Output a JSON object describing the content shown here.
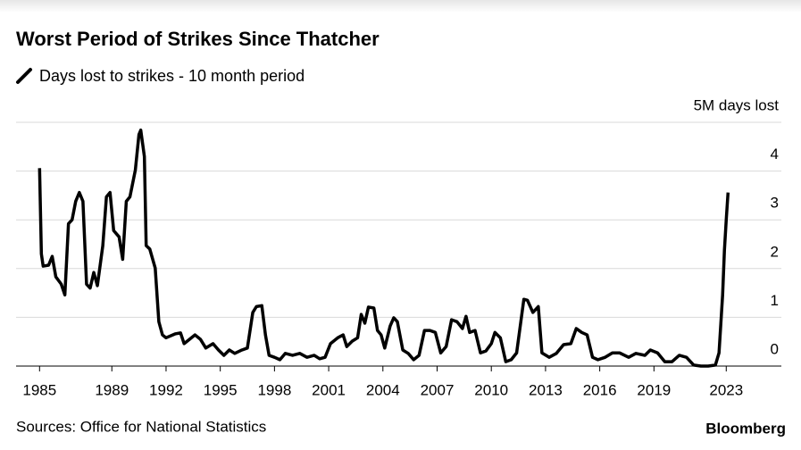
{
  "chart_data": {
    "type": "line",
    "title": "Worst Period of Strikes Since Thatcher",
    "source": "Sources: Office for National Statistics",
    "brand": "Bloomberg",
    "x": [
      1985.0,
      1985.1,
      1985.2,
      1985.5,
      1985.7,
      1985.9,
      1986.2,
      1986.4,
      1986.6,
      1986.8,
      1987.0,
      1987.2,
      1987.4,
      1987.6,
      1987.8,
      1988.0,
      1988.2,
      1988.5,
      1988.7,
      1988.9,
      1989.1,
      1989.4,
      1989.6,
      1989.8,
      1990.0,
      1990.3,
      1990.5,
      1990.6,
      1990.8,
      1990.9,
      1991.1,
      1991.4,
      1991.6,
      1991.8,
      1992.0,
      1992.5,
      1992.8,
      1993.0,
      1993.3,
      1993.6,
      1993.9,
      1994.2,
      1994.6,
      1994.9,
      1995.2,
      1995.5,
      1995.8,
      1996.2,
      1996.5,
      1996.8,
      1997.0,
      1997.3,
      1997.5,
      1997.7,
      1998.0,
      1998.3,
      1998.6,
      1999.0,
      1999.4,
      1999.8,
      2000.2,
      2000.5,
      2000.8,
      2001.1,
      2001.5,
      2001.8,
      2002.0,
      2002.3,
      2002.6,
      2002.8,
      2003.0,
      2003.2,
      2003.5,
      2003.7,
      2003.9,
      2004.1,
      2004.4,
      2004.6,
      2004.8,
      2005.1,
      2005.4,
      2005.7,
      2006.0,
      2006.3,
      2006.6,
      2006.9,
      2007.2,
      2007.5,
      2007.8,
      2008.1,
      2008.4,
      2008.6,
      2008.8,
      2009.1,
      2009.4,
      2009.7,
      2010.0,
      2010.2,
      2010.5,
      2010.8,
      2011.1,
      2011.4,
      2011.8,
      2012.0,
      2012.3,
      2012.6,
      2012.8,
      2013.2,
      2013.6,
      2014.0,
      2014.4,
      2014.7,
      2015.0,
      2015.3,
      2015.6,
      2015.9,
      2016.3,
      2016.7,
      2017.1,
      2017.6,
      2018.0,
      2018.5,
      2018.8,
      2019.2,
      2019.6,
      2020.0,
      2020.4,
      2020.8,
      2021.2,
      2021.6,
      2022.0,
      2022.4,
      2022.6,
      2022.8,
      2022.9,
      2023.0,
      2023.1
    ],
    "series": [
      {
        "name": "Days lost to strikes - 10 month period",
        "color": "#000000",
        "values": [
          4.06,
          2.3,
          2.05,
          2.07,
          2.25,
          1.83,
          1.68,
          1.46,
          2.92,
          3.0,
          3.38,
          3.56,
          3.38,
          1.68,
          1.6,
          1.92,
          1.65,
          2.47,
          3.47,
          3.56,
          2.78,
          2.65,
          2.19,
          3.38,
          3.47,
          4.02,
          4.75,
          4.84,
          4.3,
          2.47,
          2.4,
          2.01,
          0.91,
          0.64,
          0.58,
          0.66,
          0.68,
          0.46,
          0.55,
          0.64,
          0.55,
          0.37,
          0.46,
          0.33,
          0.22,
          0.33,
          0.26,
          0.33,
          0.37,
          1.1,
          1.22,
          1.24,
          0.64,
          0.22,
          0.18,
          0.13,
          0.26,
          0.22,
          0.26,
          0.18,
          0.22,
          0.15,
          0.18,
          0.46,
          0.58,
          0.64,
          0.4,
          0.51,
          0.58,
          1.06,
          0.88,
          1.21,
          1.19,
          0.73,
          0.64,
          0.37,
          0.82,
          0.99,
          0.91,
          0.33,
          0.26,
          0.13,
          0.22,
          0.73,
          0.73,
          0.69,
          0.27,
          0.4,
          0.95,
          0.91,
          0.77,
          1.02,
          0.69,
          0.73,
          0.27,
          0.31,
          0.46,
          0.69,
          0.58,
          0.09,
          0.13,
          0.27,
          1.37,
          1.35,
          1.1,
          1.22,
          0.27,
          0.18,
          0.26,
          0.44,
          0.46,
          0.77,
          0.69,
          0.64,
          0.18,
          0.13,
          0.18,
          0.27,
          0.27,
          0.18,
          0.26,
          0.22,
          0.33,
          0.27,
          0.09,
          0.09,
          0.22,
          0.18,
          0.02,
          0,
          0,
          0.02,
          0.27,
          1.46,
          2.38,
          3.0,
          3.56
        ]
      }
    ],
    "xlim": [
      1983.7,
      2026.05
    ],
    "xticks": [
      1985,
      1989,
      1992,
      1995,
      1998,
      2001,
      2004,
      2007,
      2010,
      2013,
      2016,
      2019,
      2023
    ],
    "ylim": [
      0,
      5
    ],
    "yticks": [
      0,
      1,
      2,
      3,
      4,
      {
        "value": 5,
        "label": "5M days lost"
      }
    ],
    "grid": true
  }
}
